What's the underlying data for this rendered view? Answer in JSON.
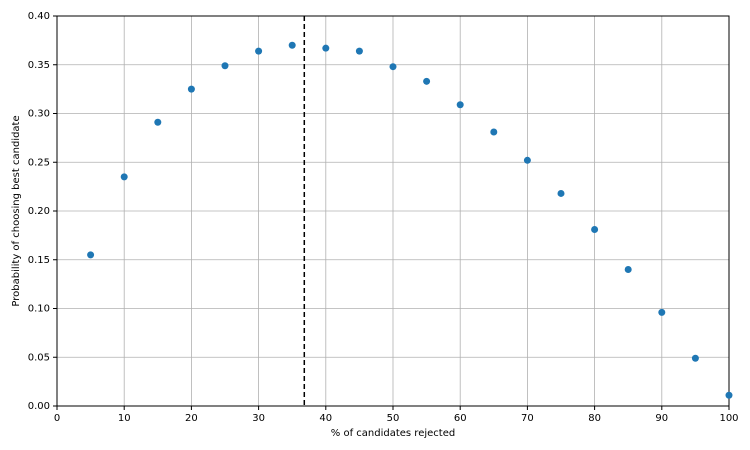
{
  "chart_data": {
    "type": "scatter",
    "xlabel": "% of candidates rejected",
    "ylabel": "Probability of choosing best candidate",
    "x": [
      5,
      10,
      15,
      20,
      25,
      30,
      35,
      40,
      45,
      50,
      55,
      60,
      65,
      70,
      75,
      80,
      85,
      90,
      95,
      100
    ],
    "values": [
      0.155,
      0.235,
      0.291,
      0.325,
      0.349,
      0.364,
      0.37,
      0.367,
      0.364,
      0.348,
      0.333,
      0.309,
      0.281,
      0.252,
      0.218,
      0.181,
      0.14,
      0.096,
      0.049,
      0.011
    ],
    "color": "#1f77b4",
    "xlim": [
      0,
      100
    ],
    "xticks": [
      0,
      10,
      20,
      30,
      40,
      50,
      60,
      70,
      80,
      90,
      100
    ],
    "ylim": [
      0,
      0.4
    ],
    "yticks": [
      {
        "value": 0,
        "label": "0.00"
      },
      {
        "value": 0.05,
        "label": "0.05"
      },
      {
        "value": 0.1,
        "label": "0.10"
      },
      {
        "value": 0.15,
        "label": "0.15"
      },
      {
        "value": 0.2,
        "label": "0.20"
      },
      {
        "value": 0.25,
        "label": "0.25"
      },
      {
        "value": 0.3,
        "label": "0.30"
      },
      {
        "value": 0.35,
        "label": "0.35"
      },
      {
        "value": 0.4,
        "label": "0.40"
      }
    ],
    "vline": 36.8,
    "grid": true
  }
}
